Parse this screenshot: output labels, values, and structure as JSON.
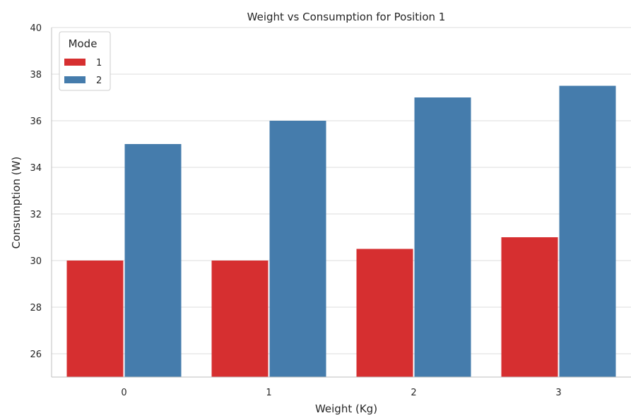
{
  "chart_data": {
    "type": "bar",
    "title": "Weight vs Consumption for Position 1",
    "xlabel": "Weight (Kg)",
    "ylabel": "Consumption (W)",
    "categories": [
      "0",
      "1",
      "2",
      "3"
    ],
    "series": [
      {
        "name": "1",
        "values": [
          30,
          30,
          30.5,
          31
        ],
        "color": "#d62f30"
      },
      {
        "name": "2",
        "values": [
          35,
          36,
          37,
          37.5
        ],
        "color": "#457cac"
      }
    ],
    "ylim": [
      25,
      40
    ],
    "yticks": [
      "26",
      "28",
      "30",
      "32",
      "34",
      "36",
      "38",
      "40"
    ],
    "grid": "horizontal",
    "legend": {
      "title": "Mode",
      "position": "top-left"
    }
  }
}
